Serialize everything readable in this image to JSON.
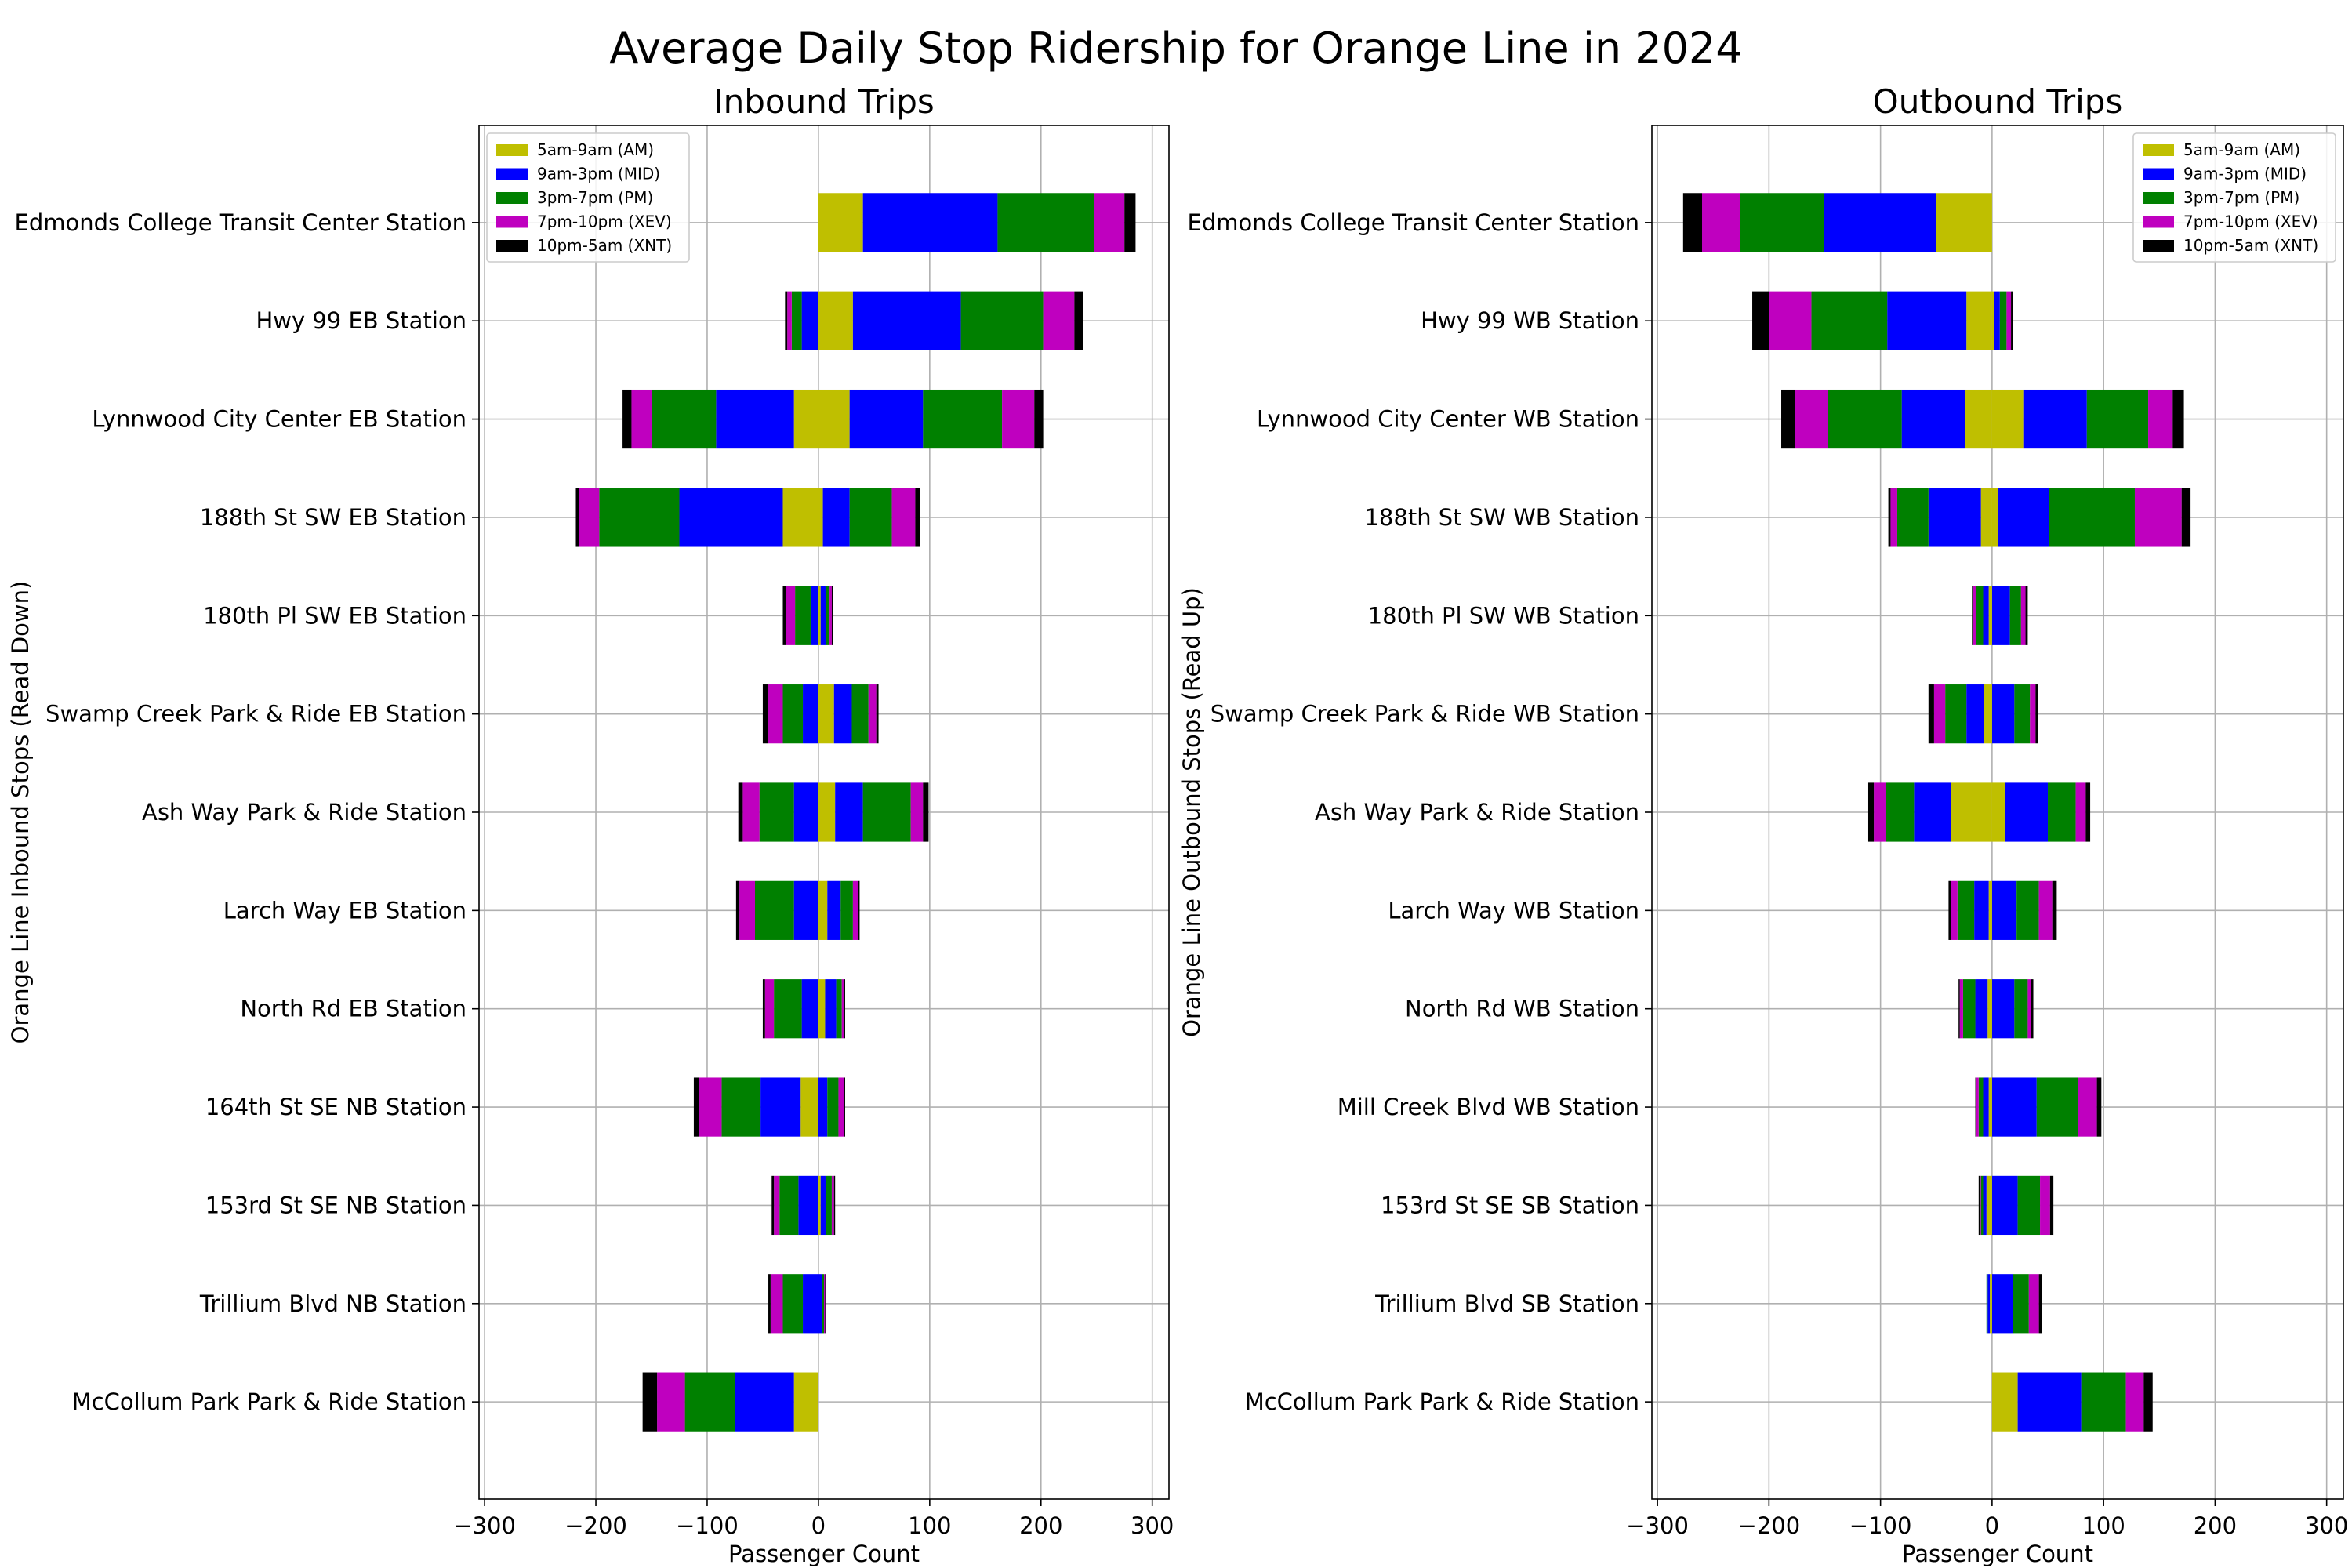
{
  "figure_title": "Average Daily Stop Ridership for Orange Line in 2024",
  "legend_labels": [
    "5am-9am (AM)",
    "9am-3pm (MID)",
    "3pm-7pm (PM)",
    "7pm-10pm (XEV)",
    "10pm-5am (XNT)"
  ],
  "colors": {
    "AM": "#bfbf00",
    "MID": "#0000ff",
    "PM": "#008000",
    "XEV": "#bf00bf",
    "XNT": "#000000"
  },
  "chart_data": [
    {
      "type": "bar",
      "orientation": "horizontal-diverging-stacked",
      "title": "Inbound Trips",
      "xlabel": "Passenger Count",
      "ylabel": "Orange Line Inbound Stops (Read Down)",
      "xlim": [
        -305,
        315
      ],
      "xticks": [
        -300,
        -200,
        -100,
        0,
        100,
        200,
        300
      ],
      "grid": true,
      "legend_position": "upper left",
      "categories": [
        "Edmonds College Transit Center Station",
        "Hwy 99 EB Station",
        "Lynnwood City Center EB Station",
        "188th St SW EB Station",
        "180th Pl SW EB Station",
        "Swamp Creek Park & Ride EB Station",
        "Ash Way Park & Ride Station",
        "Larch Way EB Station",
        "North Rd EB Station",
        "164th St SE NB Station",
        "153rd St SE NB Station",
        "Trillium Blvd NB Station",
        "McCollum Park Park & Ride Station"
      ],
      "positive_series": [
        {
          "name": "5am-9am (AM)",
          "values": [
            40,
            31,
            28,
            4,
            2,
            14,
            15,
            8,
            6,
            0,
            2,
            0,
            0
          ]
        },
        {
          "name": "9am-3pm (MID)",
          "values": [
            121,
            97,
            66,
            24,
            5,
            16,
            25,
            12,
            10,
            8,
            5,
            3,
            0
          ]
        },
        {
          "name": "3pm-7pm (PM)",
          "values": [
            87,
            74,
            71,
            38,
            3,
            15,
            43,
            11,
            5,
            10,
            5,
            2,
            0
          ]
        },
        {
          "name": "7pm-10pm (XEV)",
          "values": [
            27,
            28,
            29,
            21,
            2,
            7,
            11,
            5,
            2,
            5,
            2,
            1,
            0
          ]
        },
        {
          "name": "10pm-5am (XNT)",
          "values": [
            10,
            8,
            8,
            4,
            1,
            2,
            5,
            1,
            1,
            1,
            1,
            1,
            0
          ]
        }
      ],
      "negative_series": [
        {
          "name": "5am-9am (AM)",
          "values": [
            0,
            0,
            -22,
            -32,
            0,
            0,
            0,
            0,
            0,
            -16,
            0,
            0,
            -22
          ]
        },
        {
          "name": "9am-3pm (MID)",
          "values": [
            0,
            -15,
            -70,
            -93,
            -7,
            -14,
            -22,
            -22,
            -15,
            -36,
            -18,
            -14,
            -53
          ]
        },
        {
          "name": "3pm-7pm (PM)",
          "values": [
            0,
            -9,
            -58,
            -72,
            -14,
            -18,
            -31,
            -35,
            -25,
            -35,
            -17,
            -18,
            -45
          ]
        },
        {
          "name": "7pm-10pm (XEV)",
          "values": [
            0,
            -4,
            -18,
            -18,
            -8,
            -13,
            -15,
            -14,
            -8,
            -20,
            -5,
            -11,
            -25
          ]
        },
        {
          "name": "10pm-5am (XNT)",
          "values": [
            0,
            -2,
            -8,
            -3,
            -3,
            -5,
            -4,
            -3,
            -2,
            -5,
            -2,
            -2,
            -13
          ]
        }
      ]
    },
    {
      "type": "bar",
      "orientation": "horizontal-diverging-stacked",
      "title": "Outbound Trips",
      "xlabel": "Passenger Count",
      "ylabel": "Orange Line Outbound Stops (Read Up)",
      "xlim": [
        -305,
        315
      ],
      "xticks": [
        -300,
        -200,
        -100,
        0,
        100,
        200,
        300
      ],
      "grid": true,
      "legend_position": "upper right",
      "categories": [
        "Edmonds College Transit Center Station",
        "Hwy 99 WB Station",
        "Lynnwood City Center WB Station",
        "188th St SW WB Station",
        "180th Pl SW WB Station",
        "Swamp Creek Park & Ride WB Station",
        "Ash Way Park & Ride Station",
        "Larch Way WB Station",
        "North Rd WB Station",
        "Mill Creek Blvd WB Station",
        "153rd St SE SB Station",
        "Trillium Blvd SB Station",
        "McCollum Park Park & Ride Station"
      ],
      "positive_series": [
        {
          "name": "5am-9am (AM)",
          "values": [
            0,
            2,
            28,
            5,
            0,
            0,
            12,
            0,
            0,
            0,
            0,
            0,
            23
          ]
        },
        {
          "name": "9am-3pm (MID)",
          "values": [
            0,
            5,
            57,
            46,
            16,
            20,
            38,
            22,
            20,
            40,
            23,
            19,
            57
          ]
        },
        {
          "name": "3pm-7pm (PM)",
          "values": [
            0,
            6,
            55,
            77,
            10,
            14,
            25,
            20,
            12,
            37,
            20,
            14,
            40
          ]
        },
        {
          "name": "7pm-10pm (XEV)",
          "values": [
            0,
            4,
            22,
            42,
            4,
            5,
            9,
            12,
            3,
            17,
            9,
            9,
            16
          ]
        },
        {
          "name": "10pm-5am (XNT)",
          "values": [
            0,
            2,
            10,
            8,
            2,
            2,
            4,
            4,
            2,
            4,
            3,
            3,
            8
          ]
        }
      ],
      "negative_series": [
        {
          "name": "5am-9am (AM)",
          "values": [
            -50,
            -23,
            -24,
            -10,
            -3,
            -7,
            -37,
            -3,
            -4,
            -3,
            -5,
            -2,
            0
          ]
        },
        {
          "name": "9am-3pm (MID)",
          "values": [
            -101,
            -71,
            -57,
            -47,
            -5,
            -16,
            -33,
            -13,
            -11,
            -5,
            -3,
            -2,
            0
          ]
        },
        {
          "name": "3pm-7pm (PM)",
          "values": [
            -75,
            -68,
            -66,
            -28,
            -6,
            -19,
            -25,
            -15,
            -11,
            -4,
            -2,
            -1,
            0
          ]
        },
        {
          "name": "7pm-10pm (XEV)",
          "values": [
            -34,
            -38,
            -30,
            -6,
            -3,
            -10,
            -11,
            -6,
            -3,
            -2,
            -1,
            0,
            0
          ]
        },
        {
          "name": "10pm-5am (XNT)",
          "values": [
            -17,
            -15,
            -12,
            -2,
            -1,
            -5,
            -5,
            -2,
            -1,
            -1,
            -1,
            0,
            0
          ]
        }
      ]
    }
  ]
}
